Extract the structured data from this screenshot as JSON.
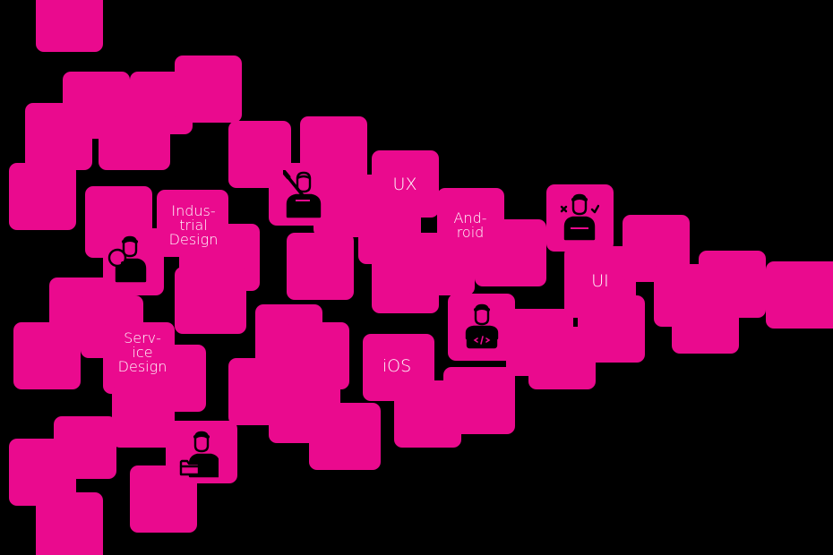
{
  "colors": {
    "background": "#000000",
    "tile": "#ea0a8e",
    "text": "#ffffff",
    "icon": "#000000"
  },
  "labels": {
    "industrial_design": "Indus-\ntrial\nDesign",
    "ux": "UX",
    "android": "And-\nroid",
    "ui": "UI",
    "service_design": "Serv-\nice\nDesign",
    "ios": "iOS"
  },
  "icons": {
    "painter": "person-with-paintbrush-icon",
    "researcher": "person-with-magnifier-icon",
    "tester": "person-with-cross-check-icon",
    "developer": "person-with-laptop-code-icon",
    "organizer": "person-with-folders-icon"
  }
}
